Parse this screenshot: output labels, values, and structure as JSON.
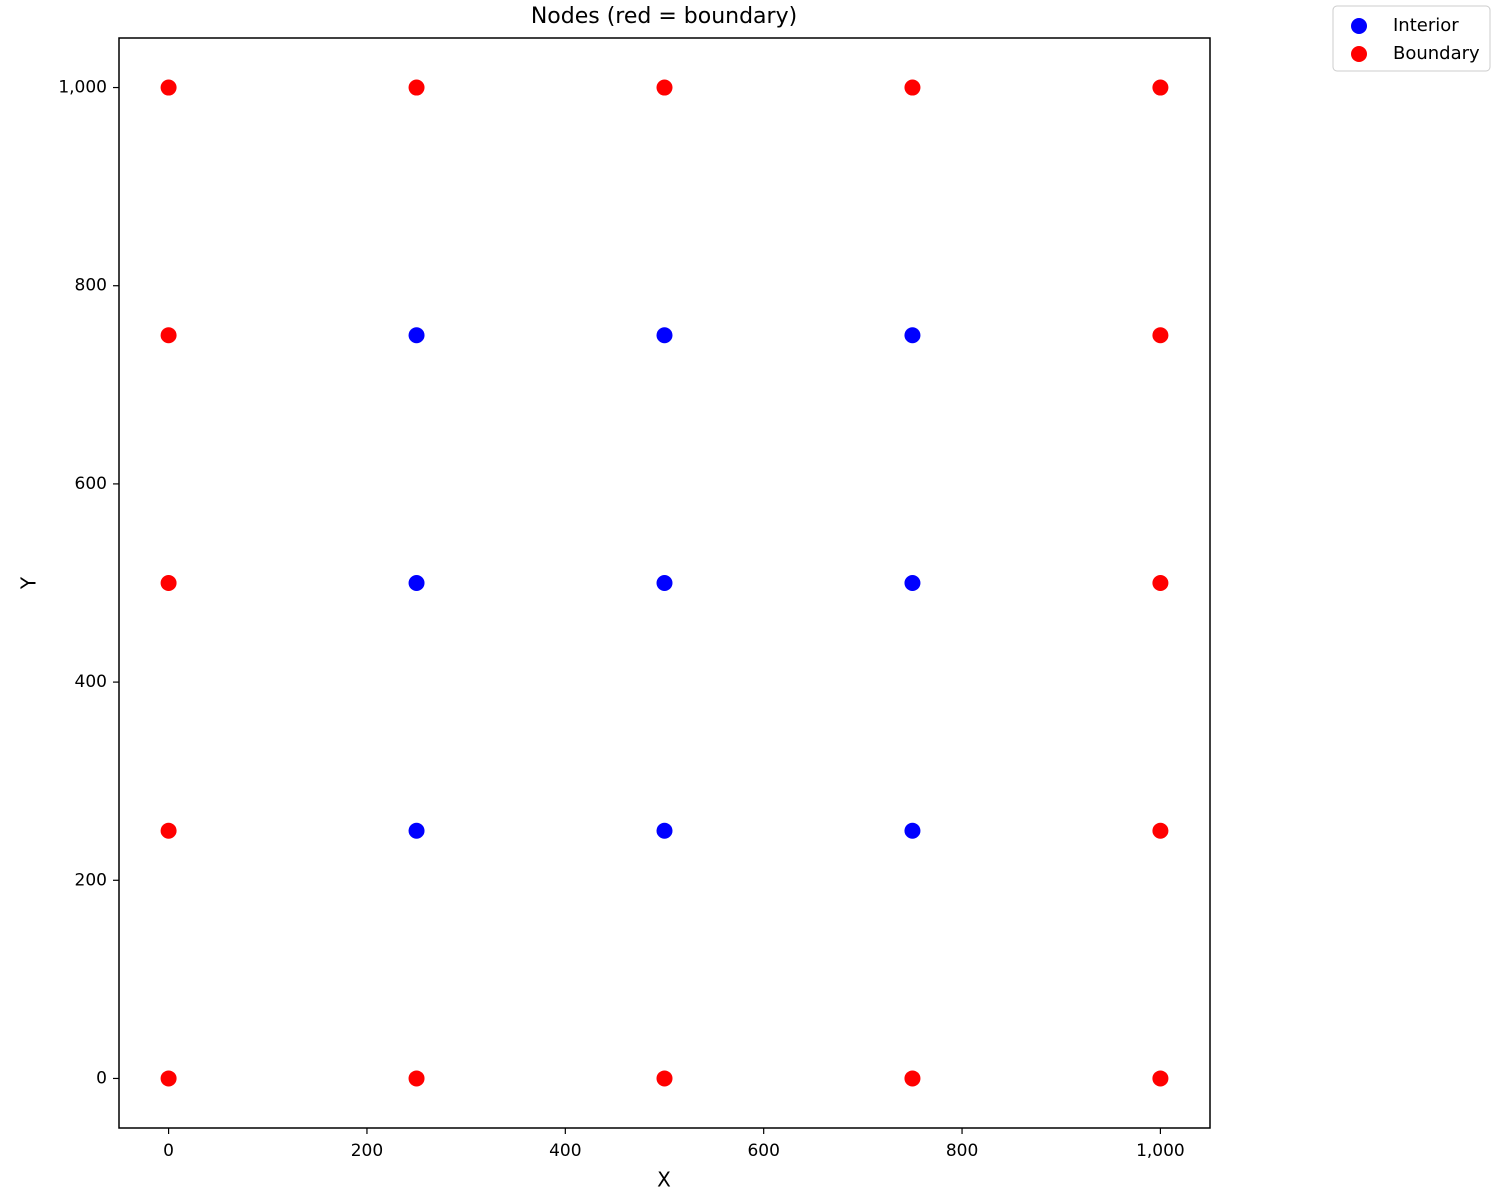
{
  "chart_data": {
    "type": "scatter",
    "title": "Nodes (red = boundary)",
    "x_label": "X",
    "y_label": "Y",
    "xlim": [
      -50,
      1050
    ],
    "ylim": [
      -50,
      1050
    ],
    "xticks": [
      0,
      200,
      400,
      600,
      800,
      {
        "value": 1000,
        "label": "1,000"
      }
    ],
    "yticks": [
      0,
      200,
      400,
      600,
      800,
      {
        "value": 1000,
        "label": "1,000"
      }
    ],
    "grid": false,
    "legend": "outside upper right",
    "series": [
      {
        "name": "Interior",
        "color": "#0000ff",
        "x": [
          250,
          500,
          750,
          250,
          500,
          750,
          250,
          500,
          750
        ],
        "values": [
          250,
          250,
          250,
          500,
          500,
          500,
          750,
          750,
          750
        ]
      },
      {
        "name": "Boundary",
        "color": "#ff0000",
        "x": [
          0,
          250,
          500,
          750,
          1000,
          0,
          1000,
          0,
          1000,
          0,
          1000,
          0,
          250,
          500,
          750,
          1000
        ],
        "values": [
          0,
          0,
          0,
          0,
          0,
          250,
          250,
          500,
          500,
          750,
          750,
          1000,
          1000,
          1000,
          1000,
          1000
        ]
      }
    ]
  }
}
